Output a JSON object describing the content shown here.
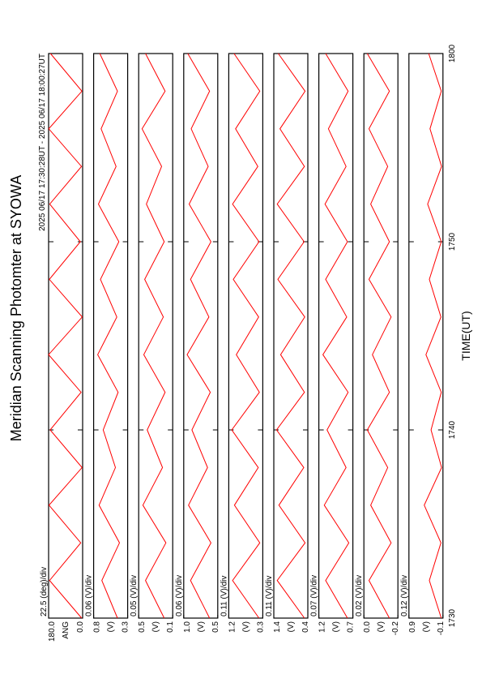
{
  "title": "Meridian Scanning Photomter at SYOWA",
  "subtitle": "2025 06/17 17:30:28UT - 2025 06/17 18:00:27UT",
  "xlabel": "TIME(UT)",
  "xlim": [
    0,
    30
  ],
  "xticks": [
    {
      "value": 0,
      "label": "1730"
    },
    {
      "value": 10,
      "label": "1740"
    },
    {
      "value": 20,
      "label": "1750"
    },
    {
      "value": 30,
      "label": "1800"
    }
  ],
  "chart_data": [
    {
      "type": "line",
      "scale_label": "22.5 (deg)/div",
      "ylabel": "ANG",
      "ylim": [
        0,
        180
      ],
      "yticks": [
        {
          "value": 0,
          "label": "0.0"
        },
        {
          "value": 180,
          "label": "180.0"
        }
      ],
      "color": "#ff0000",
      "x": [
        0,
        2,
        4,
        6,
        8,
        10,
        12,
        14,
        16,
        18,
        20,
        22,
        24,
        26,
        28,
        30
      ],
      "values": [
        5,
        175,
        10,
        178,
        3,
        172,
        8,
        180,
        2,
        176,
        12,
        174,
        6,
        179,
        4,
        170
      ]
    },
    {
      "type": "line",
      "scale_label": "0.06 (V)/div",
      "ylabel": "(V)",
      "ylim": [
        0.3,
        0.8
      ],
      "yticks": [
        0.3,
        0.8
      ],
      "color": "#ff0000",
      "x": [
        0,
        2,
        4,
        6,
        8,
        10,
        12,
        14,
        16,
        18,
        20,
        22,
        24,
        26,
        28,
        30
      ],
      "values": [
        0.45,
        0.68,
        0.42,
        0.72,
        0.48,
        0.66,
        0.44,
        0.74,
        0.46,
        0.7,
        0.43,
        0.73,
        0.47,
        0.69,
        0.45,
        0.71
      ]
    },
    {
      "type": "line",
      "scale_label": "0.05 (V)/div",
      "ylabel": "(V)",
      "ylim": [
        0.1,
        0.5
      ],
      "yticks": [
        0.1,
        0.5
      ],
      "color": "#ff0000",
      "x": [
        0,
        2,
        4,
        6,
        8,
        10,
        12,
        14,
        16,
        18,
        20,
        22,
        24,
        26,
        28,
        30
      ],
      "values": [
        0.2,
        0.42,
        0.18,
        0.45,
        0.22,
        0.4,
        0.19,
        0.44,
        0.21,
        0.43,
        0.2,
        0.41,
        0.23,
        0.46,
        0.19,
        0.42
      ]
    },
    {
      "type": "line",
      "scale_label": "0.06 (V)/div",
      "ylabel": "(V)",
      "ylim": [
        0.5,
        1
      ],
      "yticks": [
        0.5,
        {
          "value": 1,
          "label": "1.0"
        }
      ],
      "color": "#ff0000",
      "x": [
        0,
        2,
        4,
        6,
        8,
        10,
        12,
        14,
        16,
        18,
        20,
        22,
        24,
        26,
        28,
        30
      ],
      "values": [
        0.62,
        0.9,
        0.6,
        0.93,
        0.65,
        0.88,
        0.61,
        0.95,
        0.63,
        0.9,
        0.6,
        0.92,
        0.64,
        0.89,
        0.62,
        0.94
      ]
    },
    {
      "type": "line",
      "scale_label": "0.11 (V)/div",
      "ylabel": "(V)",
      "ylim": [
        0.3,
        1.2
      ],
      "yticks": [
        0.3,
        1.2
      ],
      "color": "#ff0000",
      "x": [
        0,
        2,
        4,
        6,
        8,
        10,
        12,
        14,
        16,
        18,
        20,
        22,
        24,
        26,
        28,
        30
      ],
      "values": [
        0.4,
        1.1,
        0.38,
        1.05,
        0.42,
        1.12,
        0.39,
        1.0,
        0.41,
        1.08,
        0.4,
        1.1,
        0.43,
        1.02,
        0.38,
        1.06
      ]
    },
    {
      "type": "line",
      "scale_label": "0.11 (V)/div",
      "ylabel": "(V)",
      "ylim": [
        0.4,
        1.4
      ],
      "yticks": [
        0.4,
        1.4
      ],
      "color": "#ff0000",
      "x": [
        0,
        2,
        4,
        6,
        8,
        10,
        12,
        14,
        16,
        18,
        20,
        22,
        24,
        26,
        28,
        30
      ],
      "values": [
        0.5,
        1.3,
        0.48,
        1.25,
        0.52,
        1.32,
        0.5,
        1.2,
        0.49,
        1.28,
        0.51,
        1.3,
        0.5,
        1.22,
        0.48,
        1.27
      ]
    },
    {
      "type": "line",
      "scale_label": "0.07 (V)/div",
      "ylabel": "(V)",
      "ylim": [
        0.7,
        1.2
      ],
      "yticks": [
        0.7,
        1.2
      ],
      "color": "#ff0000",
      "x": [
        0,
        2,
        4,
        6,
        8,
        10,
        12,
        14,
        16,
        18,
        20,
        22,
        24,
        26,
        28,
        30
      ],
      "values": [
        0.78,
        1.1,
        0.76,
        1.12,
        0.8,
        1.08,
        0.77,
        1.14,
        0.79,
        1.1,
        0.78,
        1.11,
        0.8,
        1.06,
        0.77,
        1.1
      ]
    },
    {
      "type": "line",
      "scale_label": "0.02 (V)/div",
      "ylabel": "(V)",
      "ylim": [
        -0.2,
        0
      ],
      "yticks": [
        -0.2,
        {
          "value": 0,
          "label": "0.0"
        }
      ],
      "color": "#ff0000",
      "x": [
        0,
        2,
        4,
        6,
        8,
        10,
        12,
        14,
        16,
        18,
        20,
        22,
        24,
        26,
        28,
        30
      ],
      "values": [
        -0.15,
        -0.03,
        -0.16,
        -0.04,
        -0.14,
        -0.02,
        -0.15,
        -0.05,
        -0.16,
        -0.03,
        -0.15,
        -0.04,
        -0.14,
        -0.03,
        -0.15,
        -0.02
      ]
    },
    {
      "type": "line",
      "scale_label": "0.12 (V)/div",
      "ylabel": "(V)",
      "ylim": [
        -0.1,
        0.9
      ],
      "yticks": [
        -0.1,
        0.9
      ],
      "color": "#ff0000",
      "x": [
        0,
        2,
        4,
        6,
        8,
        10,
        12,
        14,
        16,
        18,
        20,
        22,
        24,
        26,
        28,
        30
      ],
      "values": [
        -0.05,
        0.3,
        -0.04,
        0.45,
        -0.06,
        0.25,
        -0.05,
        0.4,
        -0.04,
        0.3,
        -0.05,
        0.35,
        -0.06,
        0.28,
        -0.05,
        0.32
      ]
    }
  ]
}
